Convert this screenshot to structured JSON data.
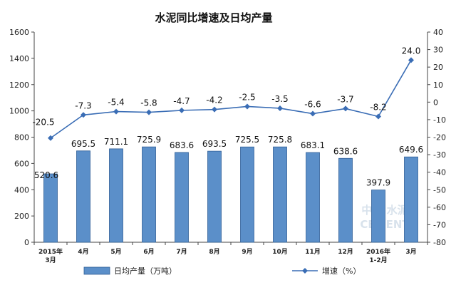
{
  "chart_data": {
    "type": "bar",
    "title": "水泥同比增速及日均产量",
    "categories": [
      [
        "2015年",
        "3月"
      ],
      [
        "4月"
      ],
      [
        "5月"
      ],
      [
        "6月"
      ],
      [
        "7月"
      ],
      [
        "8月"
      ],
      [
        "9月"
      ],
      [
        "10月"
      ],
      [
        "11月"
      ],
      [
        "12月"
      ],
      [
        "2016年",
        "1-2月"
      ],
      [
        "3月"
      ]
    ],
    "series": [
      {
        "name": "日均产量（万吨）",
        "type": "bar",
        "axis": "left",
        "color": "#5b8fc9",
        "values": [
          520.6,
          695.5,
          711.1,
          725.9,
          683.6,
          693.5,
          725.5,
          725.8,
          683.1,
          638.6,
          397.9,
          649.6
        ],
        "labels": [
          "520.6",
          "695.5",
          "711.1",
          "725.9",
          "683.6",
          "693.5",
          "725.5",
          "725.8",
          "683.1",
          "638.6",
          "397.9",
          "649.6"
        ]
      },
      {
        "name": "增速（%）",
        "type": "line",
        "axis": "right",
        "color": "#3a6db5",
        "values": [
          -20.5,
          -7.3,
          -5.4,
          -5.8,
          -4.7,
          -4.2,
          -2.5,
          -3.5,
          -6.6,
          -3.7,
          -8.2,
          24.0
        ],
        "labels": [
          "-20.5",
          "-7.3",
          "-5.4",
          "-5.8",
          "-4.7",
          "-4.2",
          "-2.5",
          "-3.5",
          "-6.6",
          "-3.7",
          "-8.2",
          "24.0"
        ]
      }
    ],
    "left_axis": {
      "min": 0,
      "max": 1600,
      "ticks": [
        "0",
        "200",
        "400",
        "600",
        "800",
        "1000",
        "1200",
        "1400",
        "1600"
      ]
    },
    "right_axis": {
      "min": -80,
      "max": 40,
      "ticks": [
        "-80",
        "-70",
        "-60",
        "-50",
        "-40",
        "-30",
        "-20",
        "-10",
        "0",
        "10",
        "20",
        "30",
        "40"
      ]
    },
    "grid": false,
    "legend_position": "bottom",
    "legend": {
      "bar_label": "日均产量（万吨）",
      "line_label": "增速（%）"
    },
    "watermark": [
      "中国",
      "CEMENT",
      "水泥"
    ]
  }
}
